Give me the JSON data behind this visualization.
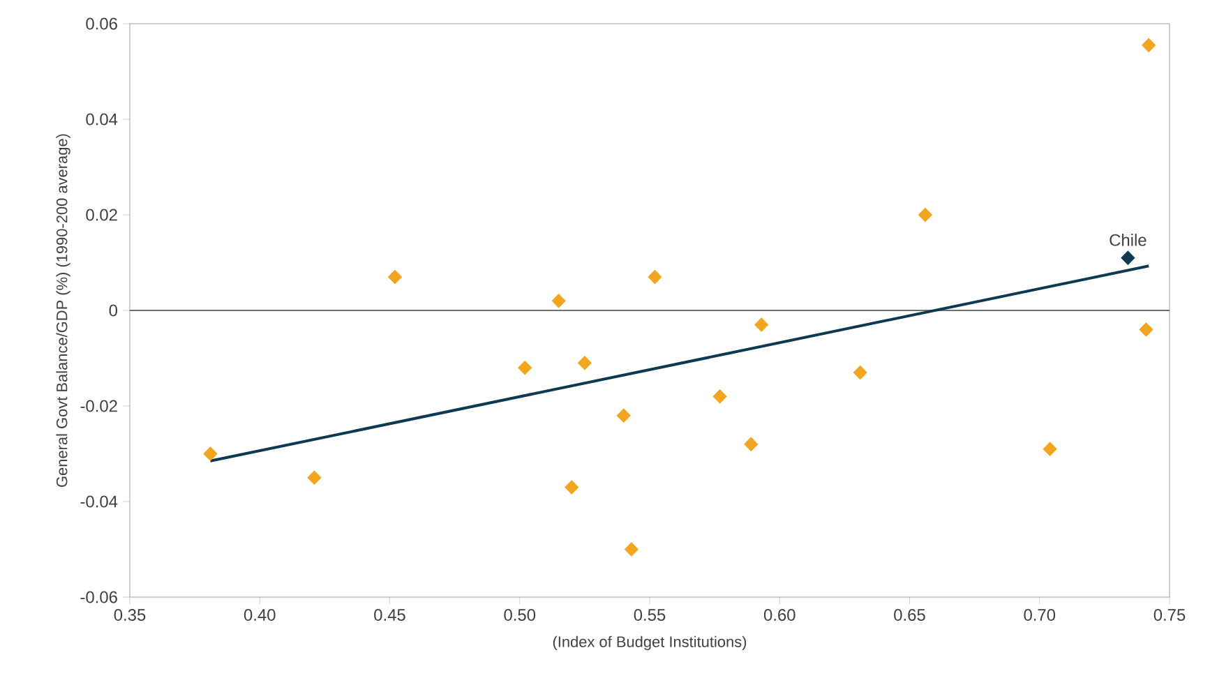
{
  "chart_data": {
    "type": "scatter",
    "xlabel": "(Index of Budget Institutions)",
    "ylabel": "General Govt Balance/GDP (%) (1990-200 average)",
    "xlim": [
      0.35,
      0.75
    ],
    "ylim": [
      -0.06,
      0.06
    ],
    "xticks": [
      0.35,
      {
        "value": 0.4,
        "label": "0.40"
      },
      0.45,
      {
        "value": 0.5,
        "label": "0.50"
      },
      0.55,
      {
        "value": 0.6,
        "label": "0.60"
      },
      0.65,
      {
        "value": 0.7,
        "label": "0.70"
      },
      0.75
    ],
    "yticks": [
      -0.06,
      -0.04,
      -0.02,
      0,
      0.02,
      0.04,
      0.06
    ],
    "grid": false,
    "marker": "diamond",
    "ref_lines": [
      {
        "axis": "y",
        "value": 0,
        "color": "#404040"
      }
    ],
    "annotations": [
      {
        "text": "Chile",
        "x": 0.734,
        "y": 0.011
      }
    ],
    "series": [
      {
        "color": "#f2a51e",
        "x": [
          0.381,
          0.421,
          0.452,
          0.502,
          0.515,
          0.525,
          0.52,
          0.54,
          0.543,
          0.552,
          0.577,
          0.593,
          0.589,
          0.631,
          0.656,
          0.704,
          0.741,
          0.742
        ],
        "values": [
          -0.03,
          -0.035,
          0.007,
          -0.012,
          0.002,
          -0.011,
          -0.037,
          -0.022,
          -0.05,
          0.007,
          -0.018,
          -0.003,
          -0.028,
          -0.013,
          0.02,
          -0.029,
          -0.004,
          0.0555
        ]
      },
      {
        "color": "#0d3a52",
        "x": [
          0.734
        ],
        "values": [
          0.011
        ]
      },
      {
        "type": "line",
        "color": "#0d3a52",
        "marker": "none",
        "x": [
          0.381,
          0.742
        ],
        "values": [
          -0.0315,
          0.0093
        ]
      }
    ]
  }
}
